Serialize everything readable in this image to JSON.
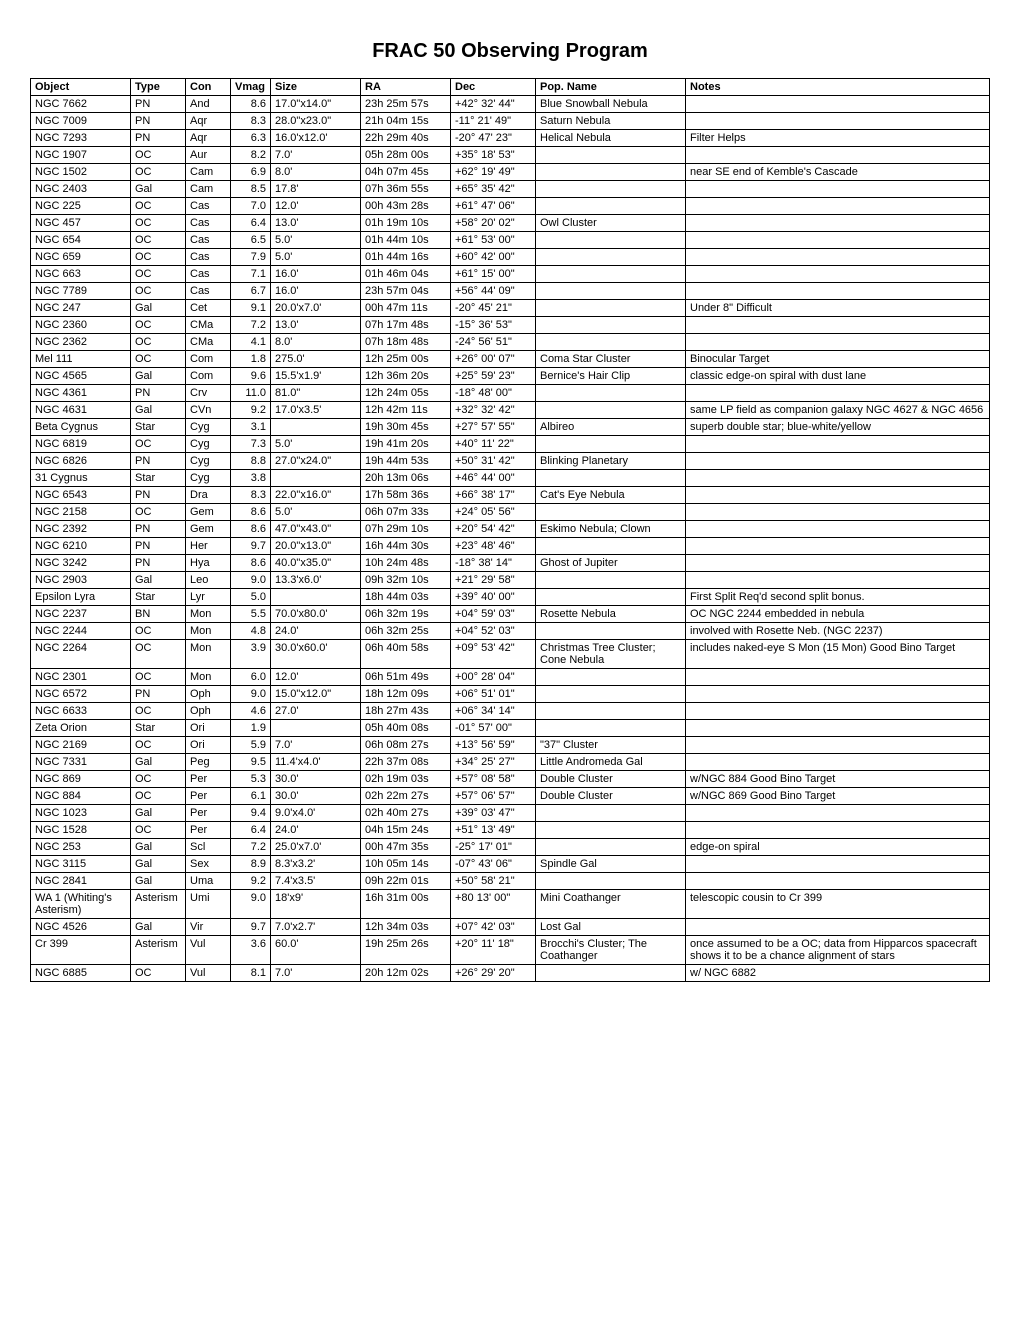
{
  "title": "FRAC 50 Observing Program",
  "columns": [
    "Object",
    "Type",
    "Con",
    "Vmag",
    "Size",
    "RA",
    "Dec",
    "Pop. Name",
    "Notes"
  ],
  "rows": [
    {
      "object": "NGC 7662",
      "type": "PN",
      "con": "And",
      "vmag": "8.6",
      "size": "17.0\"x14.0\"",
      "ra": "23h 25m 57s",
      "dec": "+42° 32' 44\"",
      "pop": "Blue Snowball Nebula",
      "notes": ""
    },
    {
      "object": "NGC 7009",
      "type": "PN",
      "con": "Aqr",
      "vmag": "8.3",
      "size": "28.0\"x23.0\"",
      "ra": "21h 04m 15s",
      "dec": "-11° 21' 49\"",
      "pop": "Saturn Nebula",
      "notes": ""
    },
    {
      "object": "NGC 7293",
      "type": "PN",
      "con": "Aqr",
      "vmag": "6.3",
      "size": "16.0'x12.0'",
      "ra": "22h 29m 40s",
      "dec": "-20° 47' 23\"",
      "pop": "Helical Nebula",
      "notes": "Filter Helps"
    },
    {
      "object": "NGC 1907",
      "type": "OC",
      "con": "Aur",
      "vmag": "8.2",
      "size": "7.0'",
      "ra": "05h 28m 00s",
      "dec": "+35° 18' 53\"",
      "pop": "",
      "notes": ""
    },
    {
      "object": "NGC 1502",
      "type": "OC",
      "con": "Cam",
      "vmag": "6.9",
      "size": "8.0'",
      "ra": "04h 07m 45s",
      "dec": "+62° 19' 49\"",
      "pop": "",
      "notes": "near SE end of Kemble's Cascade"
    },
    {
      "object": "NGC 2403",
      "type": "Gal",
      "con": "Cam",
      "vmag": "8.5",
      "size": "17.8'",
      "ra": "07h 36m 55s",
      "dec": "+65° 35' 42\"",
      "pop": "",
      "notes": ""
    },
    {
      "object": "NGC 225",
      "type": "OC",
      "con": "Cas",
      "vmag": "7.0",
      "size": "12.0'",
      "ra": "00h 43m 28s",
      "dec": "+61° 47' 06\"",
      "pop": "",
      "notes": ""
    },
    {
      "object": "NGC 457",
      "type": "OC",
      "con": "Cas",
      "vmag": "6.4",
      "size": "13.0'",
      "ra": "01h 19m 10s",
      "dec": "+58° 20' 02\"",
      "pop": "Owl Cluster",
      "notes": ""
    },
    {
      "object": "NGC 654",
      "type": "OC",
      "con": "Cas",
      "vmag": "6.5",
      "size": "5.0'",
      "ra": "01h 44m 10s",
      "dec": "+61° 53' 00\"",
      "pop": "",
      "notes": ""
    },
    {
      "object": "NGC 659",
      "type": "OC",
      "con": "Cas",
      "vmag": "7.9",
      "size": "5.0'",
      "ra": "01h 44m 16s",
      "dec": "+60° 42' 00\"",
      "pop": "",
      "notes": ""
    },
    {
      "object": "NGC 663",
      "type": "OC",
      "con": "Cas",
      "vmag": "7.1",
      "size": "16.0'",
      "ra": "01h 46m 04s",
      "dec": "+61° 15' 00\"",
      "pop": "",
      "notes": ""
    },
    {
      "object": "NGC 7789",
      "type": "OC",
      "con": "Cas",
      "vmag": "6.7",
      "size": "16.0'",
      "ra": "23h 57m 04s",
      "dec": "+56° 44' 09\"",
      "pop": "",
      "notes": ""
    },
    {
      "object": "NGC 247",
      "type": "Gal",
      "con": "Cet",
      "vmag": "9.1",
      "size": "20.0'x7.0'",
      "ra": "00h 47m 11s",
      "dec": "-20° 45' 21\"",
      "pop": "",
      "notes": "Under 8\" Difficult"
    },
    {
      "object": "NGC 2360",
      "type": "OC",
      "con": "CMa",
      "vmag": "7.2",
      "size": "13.0'",
      "ra": "07h 17m 48s",
      "dec": "-15° 36' 53\"",
      "pop": "",
      "notes": ""
    },
    {
      "object": "NGC 2362",
      "type": "OC",
      "con": "CMa",
      "vmag": "4.1",
      "size": "8.0'",
      "ra": "07h 18m 48s",
      "dec": "-24° 56' 51\"",
      "pop": "",
      "notes": ""
    },
    {
      "object": "Mel 111",
      "type": "OC",
      "con": "Com",
      "vmag": "1.8",
      "size": "275.0'",
      "ra": "12h 25m 00s",
      "dec": "+26° 00' 07\"",
      "pop": "Coma Star Cluster",
      "notes": "Binocular Target"
    },
    {
      "object": "NGC 4565",
      "type": "Gal",
      "con": "Com",
      "vmag": "9.6",
      "size": "15.5'x1.9'",
      "ra": "12h 36m 20s",
      "dec": "+25° 59' 23\"",
      "pop": "Bernice's Hair Clip",
      "notes": "classic edge-on spiral with dust lane"
    },
    {
      "object": "NGC 4361",
      "type": "PN",
      "con": "Crv",
      "vmag": "11.0",
      "size": "81.0\"",
      "ra": "12h 24m 05s",
      "dec": "-18° 48' 00\"",
      "pop": "",
      "notes": ""
    },
    {
      "object": "NGC 4631",
      "type": "Gal",
      "con": "CVn",
      "vmag": "9.2",
      "size": "17.0'x3.5'",
      "ra": "12h 42m 11s",
      "dec": "+32° 32' 42\"",
      "pop": "",
      "notes": "same LP field as companion galaxy NGC 4627 & NGC 4656"
    },
    {
      "object": "Beta Cygnus",
      "type": "Star",
      "con": "Cyg",
      "vmag": "3.1",
      "size": "",
      "ra": "19h 30m 45s",
      "dec": "+27° 57' 55\"",
      "pop": "Albireo",
      "notes": "superb double star; blue-white/yellow"
    },
    {
      "object": "NGC 6819",
      "type": "OC",
      "con": "Cyg",
      "vmag": "7.3",
      "size": "5.0'",
      "ra": "19h 41m 20s",
      "dec": "+40° 11' 22\"",
      "pop": "",
      "notes": ""
    },
    {
      "object": "NGC 6826",
      "type": "PN",
      "con": "Cyg",
      "vmag": "8.8",
      "size": "27.0\"x24.0\"",
      "ra": "19h 44m 53s",
      "dec": "+50° 31' 42\"",
      "pop": "Blinking Planetary",
      "notes": ""
    },
    {
      "object": "31 Cygnus",
      "type": "Star",
      "con": "Cyg",
      "vmag": "3.8",
      "size": "",
      "ra": "20h 13m 06s",
      "dec": "+46° 44' 00\"",
      "pop": "",
      "notes": ""
    },
    {
      "object": "NGC 6543",
      "type": "PN",
      "con": "Dra",
      "vmag": "8.3",
      "size": "22.0\"x16.0\"",
      "ra": "17h 58m 36s",
      "dec": "+66° 38' 17\"",
      "pop": "Cat's Eye Nebula",
      "notes": ""
    },
    {
      "object": "NGC 2158",
      "type": "OC",
      "con": "Gem",
      "vmag": "8.6",
      "size": "5.0'",
      "ra": "06h 07m 33s",
      "dec": "+24° 05' 56\"",
      "pop": "",
      "notes": ""
    },
    {
      "object": "NGC 2392",
      "type": "PN",
      "con": "Gem",
      "vmag": "8.6",
      "size": "47.0\"x43.0\"",
      "ra": "07h 29m 10s",
      "dec": "+20° 54' 42\"",
      "pop": "Eskimo Nebula; Clown",
      "notes": ""
    },
    {
      "object": "NGC 6210",
      "type": "PN",
      "con": "Her",
      "vmag": "9.7",
      "size": "20.0\"x13.0\"",
      "ra": "16h 44m 30s",
      "dec": "+23° 48' 46\"",
      "pop": "",
      "notes": ""
    },
    {
      "object": "NGC 3242",
      "type": "PN",
      "con": "Hya",
      "vmag": "8.6",
      "size": "40.0\"x35.0\"",
      "ra": "10h 24m 48s",
      "dec": "-18° 38' 14\"",
      "pop": "Ghost of Jupiter",
      "notes": ""
    },
    {
      "object": "NGC 2903",
      "type": "Gal",
      "con": "Leo",
      "vmag": "9.0",
      "size": "13.3'x6.0'",
      "ra": "09h 32m 10s",
      "dec": "+21° 29' 58\"",
      "pop": "",
      "notes": ""
    },
    {
      "object": "Epsilon Lyra",
      "type": "Star",
      "con": "Lyr",
      "vmag": "5.0",
      "size": "",
      "ra": "18h 44m 03s",
      "dec": "+39° 40' 00\"",
      "pop": "",
      "notes": "First Split Req'd second split bonus."
    },
    {
      "object": "NGC 2237",
      "type": "BN",
      "con": "Mon",
      "vmag": "5.5",
      "size": "70.0'x80.0'",
      "ra": "06h 32m 19s",
      "dec": "+04° 59' 03\"",
      "pop": "Rosette Nebula",
      "notes": "OC NGC 2244 embedded in nebula"
    },
    {
      "object": "NGC 2244",
      "type": "OC",
      "con": "Mon",
      "vmag": "4.8",
      "size": "24.0'",
      "ra": "06h 32m 25s",
      "dec": "+04° 52' 03\"",
      "pop": "",
      "notes": "involved with Rosette Neb. (NGC 2237)"
    },
    {
      "object": "NGC 2264",
      "type": "OC",
      "con": "Mon",
      "vmag": "3.9",
      "size": "30.0'x60.0'",
      "ra": "06h 40m 58s",
      "dec": "+09° 53' 42\"",
      "pop": "Christmas Tree Cluster; Cone Nebula",
      "notes": "includes naked-eye S Mon (15 Mon) Good Bino Target"
    },
    {
      "object": "NGC 2301",
      "type": "OC",
      "con": "Mon",
      "vmag": "6.0",
      "size": "12.0'",
      "ra": "06h 51m 49s",
      "dec": "+00° 28' 04\"",
      "pop": "",
      "notes": ""
    },
    {
      "object": "NGC 6572",
      "type": "PN",
      "con": "Oph",
      "vmag": "9.0",
      "size": "15.0\"x12.0\"",
      "ra": "18h 12m 09s",
      "dec": "+06° 51' 01\"",
      "pop": "",
      "notes": ""
    },
    {
      "object": "NGC 6633",
      "type": "OC",
      "con": "Oph",
      "vmag": "4.6",
      "size": "27.0'",
      "ra": "18h 27m 43s",
      "dec": "+06° 34' 14\"",
      "pop": "",
      "notes": ""
    },
    {
      "object": "Zeta Orion",
      "type": "Star",
      "con": "Ori",
      "vmag": "1.9",
      "size": "",
      "ra": "05h 40m 08s",
      "dec": "-01° 57' 00\"",
      "pop": "",
      "notes": ""
    },
    {
      "object": "NGC 2169",
      "type": "OC",
      "con": "Ori",
      "vmag": "5.9",
      "size": "7.0'",
      "ra": "06h 08m 27s",
      "dec": "+13° 56' 59\"",
      "pop": "\"37\" Cluster",
      "notes": ""
    },
    {
      "object": "NGC 7331",
      "type": "Gal",
      "con": "Peg",
      "vmag": "9.5",
      "size": "11.4'x4.0'",
      "ra": "22h 37m 08s",
      "dec": "+34° 25' 27\"",
      "pop": "Little Andromeda Gal",
      "notes": ""
    },
    {
      "object": "NGC 869",
      "type": "OC",
      "con": "Per",
      "vmag": "5.3",
      "size": "30.0'",
      "ra": "02h 19m 03s",
      "dec": "+57° 08' 58\"",
      "pop": "Double Cluster",
      "notes": "w/NGC 884 Good Bino Target"
    },
    {
      "object": "NGC 884",
      "type": "OC",
      "con": "Per",
      "vmag": "6.1",
      "size": "30.0'",
      "ra": "02h 22m 27s",
      "dec": "+57° 06' 57\"",
      "pop": "Double Cluster",
      "notes": "w/NGC 869 Good Bino Target"
    },
    {
      "object": "NGC 1023",
      "type": "Gal",
      "con": "Per",
      "vmag": "9.4",
      "size": "9.0'x4.0'",
      "ra": "02h 40m 27s",
      "dec": "+39° 03' 47\"",
      "pop": "",
      "notes": ""
    },
    {
      "object": "NGC 1528",
      "type": "OC",
      "con": "Per",
      "vmag": "6.4",
      "size": "24.0'",
      "ra": "04h 15m 24s",
      "dec": "+51° 13' 49\"",
      "pop": "",
      "notes": ""
    },
    {
      "object": "NGC 253",
      "type": "Gal",
      "con": "Scl",
      "vmag": "7.2",
      "size": "25.0'x7.0'",
      "ra": "00h 47m 35s",
      "dec": "-25° 17' 01\"",
      "pop": "",
      "notes": "edge-on spiral"
    },
    {
      "object": "NGC 3115",
      "type": "Gal",
      "con": "Sex",
      "vmag": "8.9",
      "size": "8.3'x3.2'",
      "ra": "10h 05m 14s",
      "dec": "-07° 43' 06\"",
      "pop": "Spindle Gal",
      "notes": ""
    },
    {
      "object": "NGC 2841",
      "type": "Gal",
      "con": "Uma",
      "vmag": "9.2",
      "size": "7.4'x3.5'",
      "ra": "09h 22m 01s",
      "dec": "+50° 58' 21\"",
      "pop": "",
      "notes": ""
    },
    {
      "object": "WA 1 (Whiting's Asterism)",
      "type": "Asterism",
      "con": "Umi",
      "vmag": "9.0",
      "size": "18'x9'",
      "ra": "16h 31m 00s",
      "dec": "+80 13' 00\"",
      "pop": "Mini Coathanger",
      "notes": "telescopic cousin to Cr 399"
    },
    {
      "object": "NGC 4526",
      "type": "Gal",
      "con": "Vir",
      "vmag": "9.7",
      "size": "7.0'x2.7'",
      "ra": "12h 34m 03s",
      "dec": "+07° 42' 03\"",
      "pop": "Lost Gal",
      "notes": ""
    },
    {
      "object": "Cr 399",
      "type": "Asterism",
      "con": "Vul",
      "vmag": "3.6",
      "size": "60.0'",
      "ra": "19h 25m 26s",
      "dec": "+20° 11' 18\"",
      "pop": "Brocchi's Cluster; The Coathanger",
      "notes": "once assumed to be a OC; data from Hipparcos spacecraft shows it to be a chance alignment of stars"
    },
    {
      "object": "NGC 6885",
      "type": "OC",
      "con": "Vul",
      "vmag": "8.1",
      "size": "7.0'",
      "ra": "20h 12m 02s",
      "dec": "+26° 29' 20\"",
      "pop": "",
      "notes": "w/ NGC 6882"
    }
  ]
}
